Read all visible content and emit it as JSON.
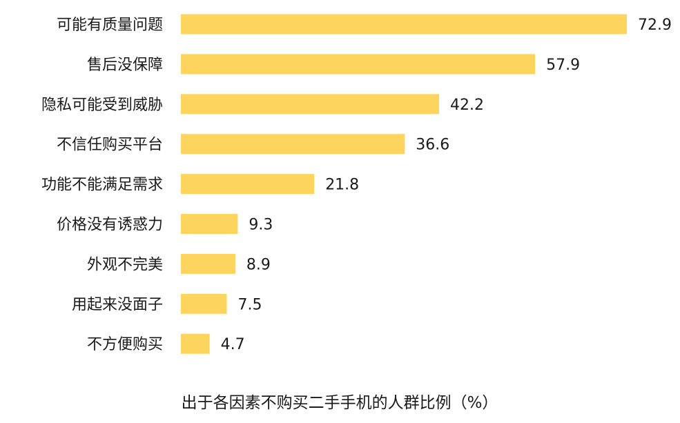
{
  "chart_data": {
    "type": "bar",
    "orientation": "horizontal",
    "title": "出于各因素不购买二手手机的人群比例（%）",
    "categories": [
      "可能有质量问题",
      "售后没保障",
      "隐私可能受到威胁",
      "不信任购买平台",
      "功能不能满足需求",
      "价格没有诱惑力",
      "外观不完美",
      "用起来没面子",
      "不方便购买"
    ],
    "values": [
      72.9,
      57.9,
      42.2,
      36.6,
      21.8,
      9.3,
      8.9,
      7.5,
      4.7
    ],
    "value_labels": [
      "72.9",
      "57.9",
      "42.2",
      "36.6",
      "21.8",
      "9.3",
      "8.9",
      "7.5",
      "4.7"
    ],
    "xlim": [
      0,
      72.9
    ],
    "grid": false,
    "legend": "none",
    "colors": {
      "bar": "#FDD45E",
      "text": "#1a1a1a"
    }
  }
}
